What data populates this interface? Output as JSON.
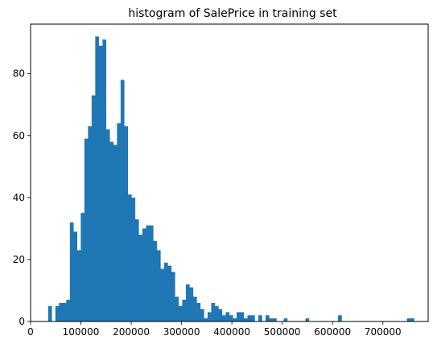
{
  "chart_data": {
    "type": "bar",
    "title": "histogram of SalePrice in training set",
    "xlabel": "",
    "ylabel": "",
    "xlim": [
      0,
      790000
    ],
    "ylim": [
      0,
      96
    ],
    "x_ticks": [
      0,
      100000,
      200000,
      300000,
      400000,
      500000,
      600000,
      700000
    ],
    "x_tick_labels": [
      "0",
      "100000",
      "200000",
      "300000",
      "400000",
      "500000",
      "600000",
      "700000"
    ],
    "y_ticks": [
      0,
      20,
      40,
      60,
      80
    ],
    "y_tick_labels": [
      "0",
      "20",
      "40",
      "60",
      "80"
    ],
    "bin_start": 34900,
    "bin_width": 7201,
    "counts": [
      5,
      0,
      5,
      6,
      6,
      7,
      32,
      29,
      23,
      35,
      59,
      63,
      73,
      92,
      89,
      91,
      62,
      58,
      57,
      64,
      78,
      63,
      41,
      40,
      33,
      28,
      30,
      31,
      31,
      26,
      23,
      17,
      19,
      18,
      16,
      8,
      5,
      7,
      12,
      11,
      8,
      6,
      4,
      1,
      3,
      6,
      5,
      4,
      2,
      3,
      2,
      1,
      3,
      3,
      1,
      2,
      2,
      0,
      2,
      0,
      2,
      1,
      1,
      0,
      0,
      1,
      0,
      0,
      0,
      0,
      0,
      1,
      0,
      0,
      0,
      0,
      0,
      0,
      0,
      0,
      2,
      0,
      0,
      0,
      0,
      0,
      0,
      0,
      0,
      0,
      0,
      0,
      0,
      0,
      0,
      0,
      0,
      0,
      0,
      1,
      1
    ],
    "color": "#1f77b4",
    "grid": false,
    "legend": false
  }
}
